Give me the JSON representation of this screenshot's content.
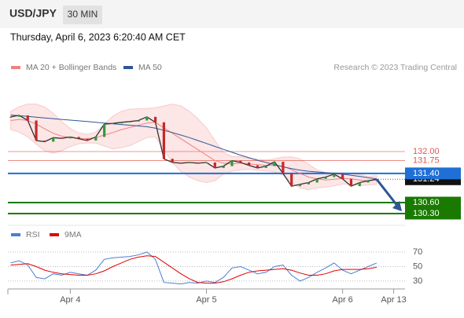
{
  "header": {
    "symbol": "USD/JPY",
    "interval": "30 MIN",
    "timestamp": "Thursday, April 6, 2023 6:20:40 AM CET"
  },
  "chart_data": [
    {
      "type": "line",
      "source": "Research © 2023 Trading Central",
      "x": [
        -10.5,
        -9,
        -7.5,
        -6,
        -4.5,
        -3,
        -1.5,
        0,
        1.5,
        3,
        4.5,
        6,
        7.5,
        9,
        10.5,
        12,
        13.5,
        15,
        16.5,
        18,
        19.5,
        21,
        22.5,
        24,
        25.5,
        27,
        28.5,
        30,
        31.5,
        33,
        34.5,
        36,
        37.5,
        39,
        40.5,
        42,
        43.5,
        45,
        46.5,
        48,
        49.5,
        51,
        52.5,
        54
      ],
      "values": [
        132.95,
        132.99,
        132.85,
        132.3,
        132.27,
        132.38,
        132.36,
        132.4,
        132.35,
        132.3,
        132.4,
        132.75,
        132.77,
        132.8,
        132.82,
        132.85,
        132.95,
        132.8,
        131.8,
        131.7,
        131.68,
        131.7,
        131.68,
        131.7,
        131.55,
        131.6,
        131.75,
        131.7,
        131.62,
        131.55,
        131.6,
        131.72,
        131.4,
        131.05,
        131.1,
        131.15,
        131.25,
        131.3,
        131.38,
        131.25,
        131.05,
        131.15,
        131.2,
        131.24
      ],
      "color": "#333333",
      "series": [
        {
          "name": "MA 20 + Bollinger Bands",
          "color": "#f08080",
          "values": [
            132.85,
            132.88,
            132.85,
            132.75,
            132.62,
            132.5,
            132.42,
            132.38,
            132.36,
            132.35,
            132.38,
            132.45,
            132.52,
            132.6,
            132.66,
            132.72,
            132.78,
            132.8,
            132.65,
            132.5,
            132.35,
            132.2,
            132.05,
            131.9,
            131.75,
            131.68,
            131.66,
            131.68,
            131.66,
            131.64,
            131.62,
            131.62,
            131.6,
            131.5,
            131.4,
            131.3,
            131.25,
            131.22,
            131.24,
            131.26,
            131.25,
            131.22,
            131.2,
            131.22
          ],
          "band_upper": [
            133.1,
            133.23,
            133.3,
            133.3,
            133.22,
            133.05,
            132.82,
            132.63,
            132.51,
            132.47,
            132.53,
            132.75,
            132.97,
            133.1,
            133.16,
            133.17,
            133.18,
            133.2,
            133.25,
            133.3,
            133.25,
            133.1,
            132.9,
            132.65,
            132.3,
            131.98,
            131.86,
            131.86,
            131.81,
            131.79,
            131.77,
            131.8,
            131.85,
            131.85,
            131.8,
            131.65,
            131.5,
            131.42,
            131.42,
            131.41,
            131.4,
            131.37,
            131.32,
            131.34
          ],
          "band_lower": [
            132.6,
            132.53,
            132.4,
            132.2,
            132.02,
            131.95,
            132.02,
            132.13,
            132.21,
            132.23,
            132.23,
            132.15,
            132.07,
            132.1,
            132.16,
            132.27,
            132.38,
            132.4,
            132.05,
            131.7,
            131.45,
            131.3,
            131.2,
            131.15,
            131.2,
            131.38,
            131.46,
            131.5,
            131.51,
            131.49,
            131.47,
            131.44,
            131.35,
            131.15,
            131.0,
            130.95,
            131.0,
            131.02,
            131.06,
            131.11,
            131.1,
            131.07,
            131.08,
            131.1
          ]
        },
        {
          "name": "MA 50",
          "color": "#2f5597",
          "values": [
            133.0,
            132.98,
            132.96,
            132.94,
            132.92,
            132.9,
            132.88,
            132.86,
            132.84,
            132.82,
            132.8,
            132.78,
            132.76,
            132.74,
            132.72,
            132.7,
            132.68,
            132.64,
            132.58,
            132.52,
            132.45,
            132.38,
            132.3,
            132.22,
            132.14,
            132.06,
            131.98,
            131.9,
            131.83,
            131.76,
            131.7,
            131.64,
            131.58,
            131.53,
            131.49,
            131.46,
            131.44,
            131.42,
            131.4,
            131.38,
            131.35,
            131.32,
            131.28,
            131.25
          ]
        }
      ],
      "levels": [
        {
          "value": 132,
          "label": "132.00",
          "color": "#e0584f",
          "boxed": false
        },
        {
          "value": 131.75,
          "label": "131.75",
          "color": "#e0584f",
          "boxed": false
        },
        {
          "value": 131.24,
          "label": "131.24",
          "color": "#111111",
          "boxed": true,
          "dotted": true
        },
        {
          "value": 131.4,
          "label": "131.40",
          "color": "#1f6fd6",
          "boxed": true
        },
        {
          "value": 130.6,
          "label": "130.60",
          "color": "#1a7a00",
          "boxed": true
        },
        {
          "value": 130.3,
          "label": "130.30",
          "color": "#1a7a00",
          "boxed": true
        }
      ],
      "xlim": [
        -11,
        59
      ],
      "ylim": [
        130.02,
        134.0
      ]
    },
    {
      "type": "line",
      "x": [
        -10.5,
        -9,
        -7.5,
        -6,
        -4.5,
        -3,
        -1.5,
        0,
        1.5,
        3,
        4.5,
        6,
        7.5,
        9,
        10.5,
        12,
        13.5,
        15,
        16.5,
        18,
        19.5,
        21,
        22.5,
        24,
        25.5,
        27,
        28.5,
        30,
        31.5,
        33,
        34.5,
        36,
        37.5,
        39,
        40.5,
        42,
        43.5,
        45,
        46.5,
        48,
        49.5,
        51,
        52.5,
        54
      ],
      "series": [
        {
          "name": "RSI",
          "color": "#4a7fd6",
          "values": [
            55,
            58,
            52,
            35,
            33,
            40,
            38,
            42,
            40,
            38,
            45,
            60,
            62,
            63,
            64,
            66,
            70,
            60,
            28,
            27,
            26,
            28,
            27,
            30,
            28,
            35,
            48,
            50,
            45,
            40,
            42,
            50,
            52,
            38,
            30,
            35,
            42,
            48,
            55,
            45,
            40,
            45,
            50,
            55
          ]
        },
        {
          "name": "9MA",
          "color": "#e00000",
          "values": [
            52,
            53,
            54,
            50,
            45,
            42,
            40,
            39,
            38,
            38,
            40,
            44,
            50,
            55,
            60,
            63,
            65,
            64,
            56,
            48,
            40,
            33,
            28,
            27,
            27,
            29,
            33,
            38,
            42,
            44,
            45,
            46,
            47,
            45,
            41,
            38,
            38,
            40,
            44,
            46,
            46,
            46,
            47,
            49
          ]
        }
      ],
      "xlim": [
        -11,
        59
      ],
      "ylim": [
        19,
        82
      ],
      "yticks": [
        30,
        50,
        70
      ],
      "xticks": [
        {
          "value": 0,
          "label": "Apr 4"
        },
        {
          "value": 24,
          "label": "Apr 5"
        },
        {
          "value": 48,
          "label": "Apr 6"
        },
        {
          "value": 57,
          "label": "Apr 13"
        }
      ]
    }
  ]
}
